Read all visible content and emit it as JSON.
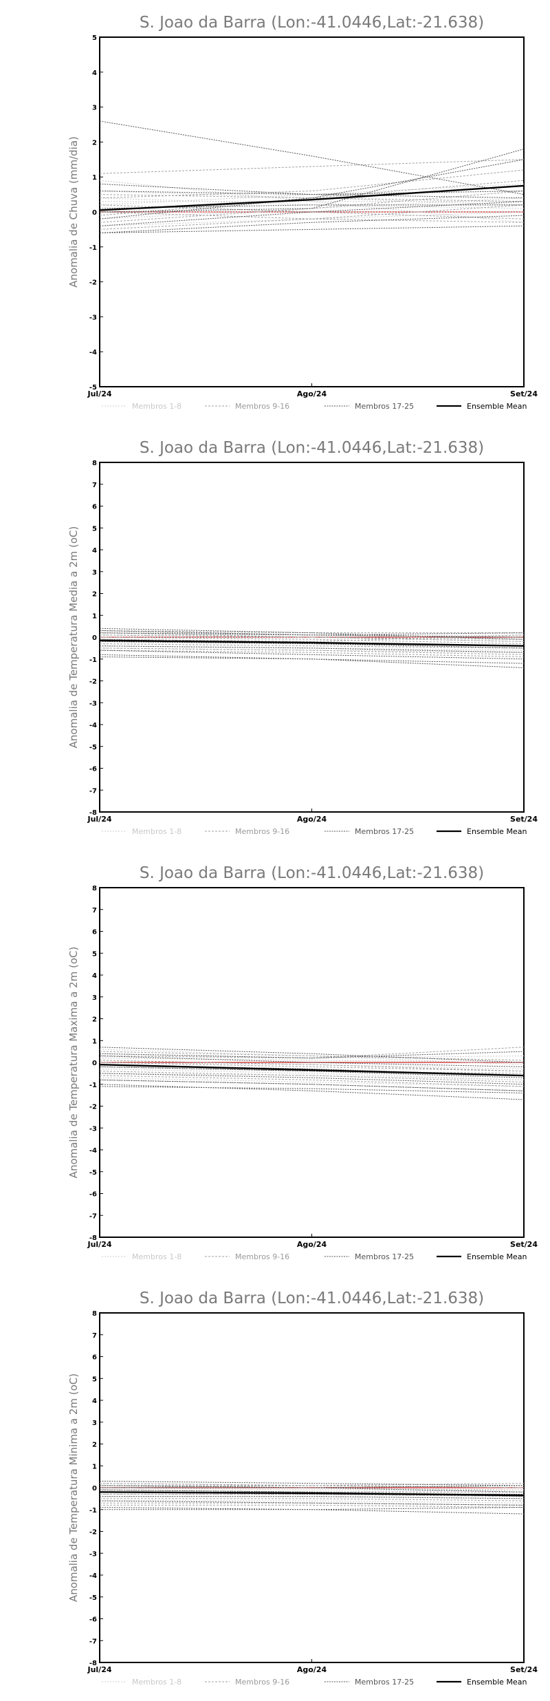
{
  "chart_data": [
    {
      "type": "line",
      "title": "S. Joao da Barra (Lon:-41.0446,Lat:-21.638)",
      "ylabel": "Anomalia de Chuva (mm/dia)",
      "xlabel": "",
      "categories": [
        "Jul/24",
        "Ago/24",
        "Set/24"
      ],
      "ylim": [
        -5,
        5
      ],
      "yticks": [
        -5,
        -4,
        -3,
        -2,
        -1,
        0,
        1,
        2,
        3,
        4,
        5
      ],
      "grid": false,
      "legend_position": "bottom",
      "legend": [
        "Membros 1-8",
        "Membros 9-16",
        "Membros 17-25",
        "Ensemble Mean"
      ],
      "reference_line": 0,
      "colors": {
        "members_1_8": "#c8c8c8",
        "members_9_16": "#a0a0a0",
        "members_17_25": "#555555",
        "mean": "#000000",
        "reference": "#cc2222"
      },
      "members_1_8": [
        [
          0.9,
          0.3,
          -0.3
        ],
        [
          0.4,
          0.2,
          0.1
        ],
        [
          -0.2,
          0.1,
          0.4
        ],
        [
          0.0,
          0.0,
          0.0
        ],
        [
          0.6,
          0.4,
          0.2
        ],
        [
          0.2,
          0.5,
          0.8
        ],
        [
          -0.4,
          -0.2,
          0.0
        ],
        [
          0.3,
          0.3,
          0.3
        ]
      ],
      "members_9_16": [
        [
          -0.3,
          0.1,
          0.6
        ],
        [
          0.2,
          0.0,
          -0.2
        ],
        [
          -0.5,
          -0.2,
          0.2
        ],
        [
          0.5,
          0.4,
          0.3
        ],
        [
          1.1,
          1.3,
          1.5
        ],
        [
          -0.1,
          0.4,
          0.9
        ],
        [
          0.0,
          -0.2,
          -0.3
        ],
        [
          0.4,
          0.6,
          1.2
        ]
      ],
      "members_17_25": [
        [
          2.6,
          1.6,
          0.5
        ],
        [
          0.8,
          0.5,
          0.4
        ],
        [
          0.0,
          0.1,
          1.8
        ],
        [
          -0.6,
          -0.3,
          -0.1
        ],
        [
          -0.2,
          0.4,
          1.5
        ],
        [
          0.6,
          0.5,
          0.6
        ],
        [
          -0.4,
          0.0,
          0.3
        ],
        [
          0.1,
          0.2,
          0.2
        ],
        [
          -0.6,
          -0.5,
          -0.4
        ]
      ],
      "series": [
        {
          "name": "Ensemble Mean",
          "values": [
            0.05,
            0.35,
            0.75
          ]
        }
      ]
    },
    {
      "type": "line",
      "title": "S. Joao da Barra (Lon:-41.0446,Lat:-21.638)",
      "ylabel": "Anomalia de Temperatura Media a 2m (oC)",
      "xlabel": "",
      "categories": [
        "Jul/24",
        "Ago/24",
        "Set/24"
      ],
      "ylim": [
        -8,
        8
      ],
      "yticks": [
        -8,
        -7,
        -6,
        -5,
        -4,
        -3,
        -2,
        -1,
        0,
        1,
        2,
        3,
        4,
        5,
        6,
        7,
        8
      ],
      "grid": false,
      "legend_position": "bottom",
      "legend": [
        "Membros 1-8",
        "Membros 9-16",
        "Membros 17-25",
        "Ensemble Mean"
      ],
      "reference_line": 0,
      "colors": {
        "members_1_8": "#c8c8c8",
        "members_9_16": "#a0a0a0",
        "members_17_25": "#555555",
        "mean": "#000000",
        "reference": "#cc2222"
      },
      "members_1_8": [
        [
          0.3,
          0.1,
          -0.1
        ],
        [
          -0.2,
          -0.3,
          -0.4
        ],
        [
          0.1,
          0.0,
          0.1
        ],
        [
          -0.5,
          -0.6,
          -0.7
        ],
        [
          0.2,
          0.1,
          0.0
        ],
        [
          -0.1,
          -0.2,
          -0.4
        ],
        [
          0.0,
          0.0,
          -0.2
        ],
        [
          -0.4,
          -0.5,
          -0.6
        ]
      ],
      "members_9_16": [
        [
          0.3,
          0.2,
          0.2
        ],
        [
          -0.3,
          -0.4,
          -0.5
        ],
        [
          0.0,
          -0.1,
          -0.3
        ],
        [
          -0.6,
          -0.7,
          -0.9
        ],
        [
          0.2,
          0.0,
          -0.2
        ],
        [
          -0.1,
          -0.2,
          0.1
        ],
        [
          -0.5,
          -0.6,
          -0.8
        ],
        [
          0.1,
          0.0,
          -0.1
        ]
      ],
      "members_17_25": [
        [
          0.4,
          0.2,
          -0.1
        ],
        [
          -0.8,
          -1.0,
          -1.4
        ],
        [
          -0.4,
          -0.5,
          -0.7
        ],
        [
          0.2,
          0.1,
          0.2
        ],
        [
          -0.2,
          -0.3,
          -0.5
        ],
        [
          -0.6,
          -0.8,
          -1.0
        ],
        [
          0.3,
          0.1,
          0.0
        ],
        [
          -0.1,
          -0.3,
          -0.4
        ],
        [
          -0.9,
          -1.0,
          -1.2
        ]
      ],
      "series": [
        {
          "name": "Ensemble Mean",
          "values": [
            -0.15,
            -0.25,
            -0.4
          ]
        }
      ]
    },
    {
      "type": "line",
      "title": "S. Joao da Barra (Lon:-41.0446,Lat:-21.638)",
      "ylabel": "Anomalia de Temperatura Maxima a 2m (oC)",
      "xlabel": "",
      "categories": [
        "Jul/24",
        "Ago/24",
        "Set/24"
      ],
      "ylim": [
        -8,
        8
      ],
      "yticks": [
        -8,
        -7,
        -6,
        -5,
        -4,
        -3,
        -2,
        -1,
        0,
        1,
        2,
        3,
        4,
        5,
        6,
        7,
        8
      ],
      "grid": false,
      "legend_position": "bottom",
      "legend": [
        "Membros 1-8",
        "Membros 9-16",
        "Membros 17-25",
        "Ensemble Mean"
      ],
      "reference_line": 0,
      "colors": {
        "members_1_8": "#c8c8c8",
        "members_9_16": "#a0a0a0",
        "members_17_25": "#555555",
        "mean": "#000000",
        "reference": "#cc2222"
      },
      "members_1_8": [
        [
          0.6,
          0.3,
          -0.1
        ],
        [
          -0.3,
          -0.5,
          -0.8
        ],
        [
          0.2,
          0.1,
          0.0
        ],
        [
          -0.7,
          -0.9,
          -1.1
        ],
        [
          0.4,
          0.2,
          0.3
        ],
        [
          -0.1,
          -0.3,
          -0.6
        ],
        [
          0.0,
          -0.1,
          -0.3
        ],
        [
          -0.5,
          -0.6,
          -0.8
        ]
      ],
      "members_9_16": [
        [
          0.5,
          0.3,
          0.1
        ],
        [
          -0.4,
          -0.6,
          -0.9
        ],
        [
          0.1,
          -0.1,
          -0.4
        ],
        [
          -0.8,
          -1.0,
          -1.3
        ],
        [
          0.3,
          0.2,
          0.7
        ],
        [
          -0.2,
          -0.4,
          -0.5
        ],
        [
          -0.6,
          -0.8,
          -1.1
        ],
        [
          0.0,
          -0.2,
          -0.4
        ]
      ],
      "members_17_25": [
        [
          0.7,
          0.4,
          0.0
        ],
        [
          -1.0,
          -1.3,
          -1.7
        ],
        [
          -0.5,
          -0.7,
          -1.0
        ],
        [
          0.4,
          0.2,
          0.5
        ],
        [
          -0.2,
          -0.4,
          -0.7
        ],
        [
          -0.8,
          -1.0,
          -1.3
        ],
        [
          0.3,
          0.0,
          -0.2
        ],
        [
          -0.1,
          -0.3,
          -0.6
        ],
        [
          -1.1,
          -1.2,
          -1.4
        ]
      ],
      "series": [
        {
          "name": "Ensemble Mean",
          "values": [
            -0.1,
            -0.35,
            -0.6
          ]
        }
      ]
    },
    {
      "type": "line",
      "title": "S. Joao da Barra (Lon:-41.0446,Lat:-21.638)",
      "ylabel": "Anomalia de Temperatura Minima a 2m (oC)",
      "xlabel": "",
      "categories": [
        "Jul/24",
        "Ago/24",
        "Set/24"
      ],
      "ylim": [
        -8,
        8
      ],
      "yticks": [
        -8,
        -7,
        -6,
        -5,
        -4,
        -3,
        -2,
        -1,
        0,
        1,
        2,
        3,
        4,
        5,
        6,
        7,
        8
      ],
      "grid": false,
      "legend_position": "bottom",
      "legend": [
        "Membros 1-8",
        "Membros 9-16",
        "Membros 17-25",
        "Ensemble Mean"
      ],
      "reference_line": 0,
      "colors": {
        "members_1_8": "#c8c8c8",
        "members_9_16": "#a0a0a0",
        "members_17_25": "#555555",
        "mean": "#000000",
        "reference": "#cc2222"
      },
      "members_1_8": [
        [
          0.2,
          0.1,
          0.0
        ],
        [
          -0.3,
          -0.3,
          -0.4
        ],
        [
          0.0,
          -0.1,
          -0.1
        ],
        [
          -0.6,
          -0.6,
          -0.7
        ],
        [
          0.1,
          0.0,
          -0.1
        ],
        [
          -0.1,
          -0.2,
          -0.3
        ],
        [
          -0.2,
          -0.2,
          -0.1
        ],
        [
          -0.4,
          -0.4,
          -0.5
        ]
      ],
      "members_9_16": [
        [
          0.1,
          0.1,
          0.0
        ],
        [
          -0.5,
          -0.5,
          -0.6
        ],
        [
          -0.1,
          -0.2,
          -0.2
        ],
        [
          -0.7,
          -0.7,
          -0.8
        ],
        [
          0.0,
          0.1,
          0.2
        ],
        [
          -0.3,
          -0.3,
          -0.4
        ],
        [
          -0.8,
          -0.8,
          -0.9
        ],
        [
          0.2,
          0.1,
          0.0
        ]
      ],
      "members_17_25": [
        [
          0.3,
          0.2,
          0.1
        ],
        [
          -0.9,
          -1.0,
          -1.2
        ],
        [
          -0.4,
          -0.4,
          -0.5
        ],
        [
          0.0,
          0.0,
          0.1
        ],
        [
          -0.2,
          -0.3,
          -0.3
        ],
        [
          -0.6,
          -0.7,
          -0.8
        ],
        [
          -1.0,
          -1.0,
          -0.9
        ],
        [
          -0.1,
          -0.2,
          -0.4
        ],
        [
          0.1,
          0.0,
          -0.2
        ]
      ],
      "series": [
        {
          "name": "Ensemble Mean",
          "values": [
            -0.2,
            -0.25,
            -0.35
          ]
        }
      ]
    }
  ]
}
